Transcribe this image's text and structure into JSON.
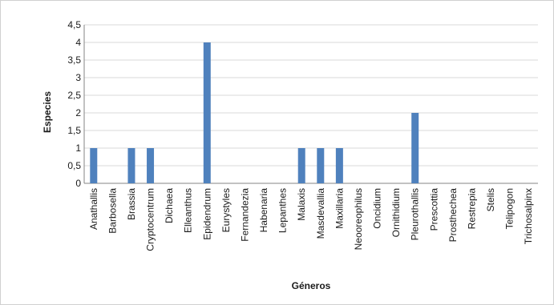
{
  "chart_data": {
    "type": "bar",
    "title": "",
    "xlabel": "Géneros",
    "ylabel": "Especies",
    "ylim": [
      0,
      4.5
    ],
    "yticks": [
      "0",
      "0,5",
      "1",
      "1,5",
      "2",
      "2,5",
      "3",
      "3,5",
      "4",
      "4,5"
    ],
    "grid": true,
    "legend": "none",
    "bar_color": "#4f81bd",
    "categories": [
      "Anathallis",
      "Barbosella",
      "Brassia",
      "Cryptocentrum",
      "Dichaea",
      "Elleanthus",
      "Epidendrum",
      "Eurystyles",
      "Fernandezia",
      "Habenaria",
      "Lepanthes",
      "Malaxis",
      "Masdevallia",
      "Maxillaria",
      "Neooreophilus",
      "Oncidium",
      "Ornithidium",
      "Pleurothallis",
      "Prescottia",
      "Prosthechea",
      "Restrepia",
      "Stelis",
      "Telipogon",
      "Trichosalpinx"
    ],
    "values": [
      1,
      0,
      1,
      1,
      0,
      0,
      4,
      0,
      0,
      0,
      0,
      1,
      1,
      1,
      0,
      0,
      0,
      2,
      0,
      0,
      0,
      0,
      0,
      0
    ]
  }
}
